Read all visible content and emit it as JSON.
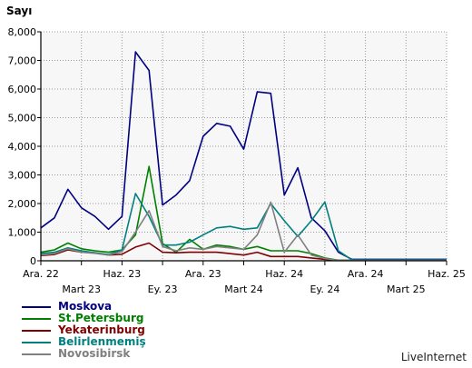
{
  "chart_data": {
    "type": "line",
    "title": "",
    "ylabel": "Sayı",
    "xlabel": "",
    "ylim": [
      0,
      8000
    ],
    "yticks": [
      0,
      1000,
      2000,
      3000,
      4000,
      5000,
      6000,
      7000,
      8000
    ],
    "ytick_labels": [
      "0",
      "1,000",
      "2,000",
      "3,000",
      "4,000",
      "5,000",
      "6,000",
      "7,000",
      "8,000"
    ],
    "x_dates": [
      "2022-12",
      "2023-01",
      "2023-02",
      "2023-03",
      "2023-04",
      "2023-05",
      "2023-06",
      "2023-07",
      "2023-08",
      "2023-09",
      "2023-10",
      "2023-11",
      "2023-12",
      "2024-01",
      "2024-02",
      "2024-03",
      "2024-04",
      "2024-05",
      "2024-06",
      "2024-07",
      "2024-08",
      "2024-09",
      "2024-10",
      "2024-11",
      "2024-12",
      "2025-01",
      "2025-02",
      "2025-03",
      "2025-04",
      "2025-05",
      "2025-06"
    ],
    "xlim": [
      "2022-12",
      "2025-06"
    ],
    "xticks_top": [
      {
        "date": "2022-12",
        "label": "Ara. 22"
      },
      {
        "date": "2023-06",
        "label": "Haz. 23"
      },
      {
        "date": "2023-12",
        "label": "Ara. 23"
      },
      {
        "date": "2024-06",
        "label": "Haz. 24"
      },
      {
        "date": "2024-12",
        "label": "Ara. 24"
      },
      {
        "date": "2025-06",
        "label": "Haz. 25"
      }
    ],
    "xticks_bottom": [
      {
        "date": "2023-03",
        "label": "Mart 23"
      },
      {
        "date": "2023-09",
        "label": "Ey. 23"
      },
      {
        "date": "2024-03",
        "label": "Mart 24"
      },
      {
        "date": "2024-09",
        "label": "Ey. 24"
      },
      {
        "date": "2025-03",
        "label": "Mart 25"
      }
    ],
    "grid": true,
    "legend_position": "bottom-left",
    "series": [
      {
        "name": "Moskova",
        "color": "#000080",
        "values": [
          1150,
          1500,
          2500,
          1850,
          1550,
          1100,
          1550,
          7300,
          6650,
          1950,
          2300,
          2800,
          4350,
          4800,
          4700,
          3900,
          5900,
          5850,
          2300,
          3250,
          1500,
          1050,
          300,
          50,
          50,
          50,
          50,
          50,
          50,
          50,
          50
        ]
      },
      {
        "name": "St.Petersburg",
        "color": "#008000",
        "values": [
          300,
          380,
          620,
          420,
          350,
          300,
          380,
          900,
          3300,
          600,
          300,
          750,
          400,
          550,
          500,
          400,
          500,
          350,
          350,
          350,
          250,
          100,
          20,
          20,
          20,
          20,
          20,
          20,
          20,
          20,
          20
        ]
      },
      {
        "name": "Yekaterinburg",
        "color": "#800000",
        "values": [
          180,
          220,
          380,
          300,
          280,
          200,
          230,
          480,
          620,
          300,
          280,
          300,
          300,
          300,
          250,
          200,
          300,
          150,
          150,
          150,
          100,
          50,
          10,
          10,
          10,
          10,
          10,
          10,
          10,
          10,
          10
        ]
      },
      {
        "name": "Belirlenmemiş",
        "color": "#008080",
        "values": [
          250,
          300,
          450,
          350,
          280,
          220,
          380,
          2350,
          1550,
          550,
          550,
          650,
          900,
          1150,
          1200,
          1100,
          1150,
          2000,
          1400,
          850,
          1400,
          2050,
          350,
          30,
          30,
          30,
          30,
          30,
          30,
          30,
          30
        ]
      },
      {
        "name": "Novosibirsk",
        "color": "#808080",
        "values": [
          200,
          250,
          420,
          300,
          260,
          200,
          320,
          1000,
          1750,
          500,
          350,
          450,
          400,
          500,
          450,
          400,
          900,
          2050,
          300,
          900,
          200,
          80,
          10,
          10,
          10,
          10,
          10,
          10,
          10,
          10,
          10
        ]
      }
    ]
  },
  "branding": {
    "credit": "LiveInternet"
  }
}
